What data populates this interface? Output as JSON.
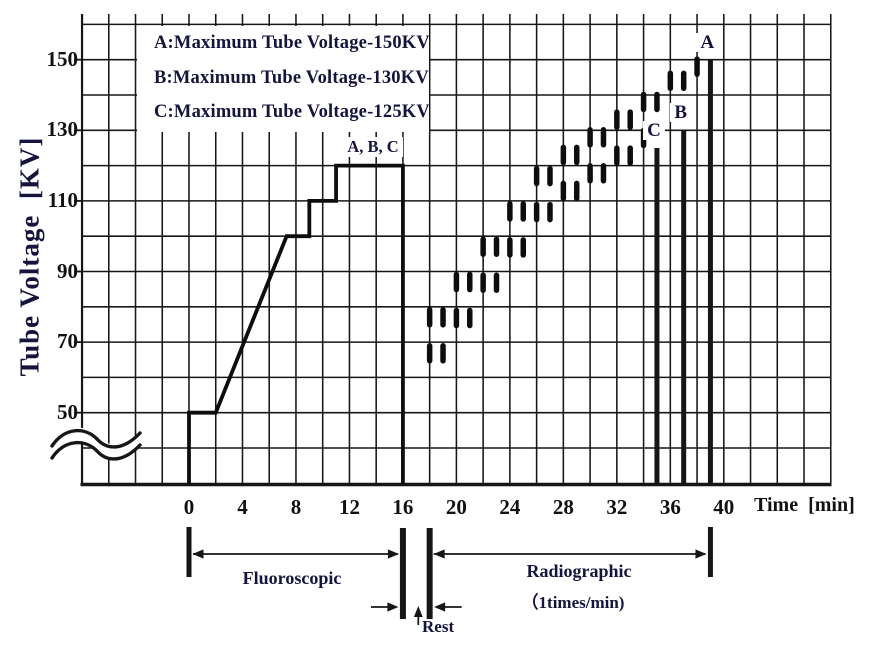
{
  "figure": {
    "y_axis": {
      "label": "Tube Voltage  [KV]",
      "ticks": [
        150,
        130,
        110,
        90,
        70,
        50
      ]
    },
    "x_axis": {
      "label": "Time  [min]",
      "ticks": [
        0,
        4,
        8,
        12,
        16,
        20,
        24,
        28,
        32,
        36,
        40
      ]
    },
    "legend": [
      "A:Maximum Tube Voltage-150KV",
      "B:Maximum Tube Voltage-130KV",
      "C:Maximum Tube Voltage-125KV"
    ],
    "plateau_label": "A, B, C",
    "phase_labels": {
      "fluoroscopic": "Fluoroscopic",
      "radiographic": "Radiographic",
      "radiographic_note": "（1times/min)",
      "rest": "Rest"
    }
  },
  "chart_data": {
    "type": "line",
    "xlabel": "Time [min]",
    "ylabel": "Tube Voltage [KV]",
    "x_ticks": [
      0,
      4,
      8,
      12,
      16,
      20,
      24,
      28,
      32,
      36,
      40
    ],
    "y_ticks": [
      150,
      130,
      110,
      90,
      70,
      50
    ],
    "x_gridline_range": [
      -8,
      48
    ],
    "x_gridline_step": 2,
    "y_gridline_range": [
      40,
      160
    ],
    "y_gridline_step": 10,
    "axis_break_below_kv": 50,
    "fluoroscopic_profile": [
      [
        0,
        0
      ],
      [
        0,
        50
      ],
      [
        2,
        50
      ],
      [
        7.3,
        100
      ],
      [
        9,
        100
      ],
      [
        9,
        110
      ],
      [
        11,
        110
      ],
      [
        11,
        120
      ],
      [
        16,
        120
      ],
      [
        16,
        0
      ]
    ],
    "plateau_label_at": [
      13.7,
      120
    ],
    "radiographic_exposures": [
      {
        "t": 18,
        "kv_top": 80,
        "dashes": 2
      },
      {
        "t": 19,
        "kv_top": 80,
        "dashes": 2
      },
      {
        "t": 20,
        "kv_top": 90,
        "dashes": 2
      },
      {
        "t": 21,
        "kv_top": 90,
        "dashes": 2
      },
      {
        "t": 22,
        "kv_top": 100,
        "dashes": 2
      },
      {
        "t": 23,
        "kv_top": 100,
        "dashes": 2
      },
      {
        "t": 24,
        "kv_top": 110,
        "dashes": 2
      },
      {
        "t": 25,
        "kv_top": 110,
        "dashes": 2
      },
      {
        "t": 26,
        "kv_top": 120,
        "dashes": 2
      },
      {
        "t": 27,
        "kv_top": 120,
        "dashes": 2
      },
      {
        "t": 28,
        "kv_top": 126,
        "dashes": 2
      },
      {
        "t": 29,
        "kv_top": 126,
        "dashes": 2
      },
      {
        "t": 30,
        "kv_top": 131,
        "dashes": 2
      },
      {
        "t": 31,
        "kv_top": 131,
        "dashes": 2
      },
      {
        "t": 32,
        "kv_top": 136,
        "dashes": 2
      },
      {
        "t": 33,
        "kv_top": 136,
        "dashes": 2
      },
      {
        "t": 34,
        "kv_top": 141,
        "dashes": 2
      },
      {
        "t": 35,
        "kv_top": 141,
        "dashes": 1
      },
      {
        "t": 36,
        "kv_top": 147,
        "dashes": 1
      },
      {
        "t": 37,
        "kv_top": 147,
        "dashes": 1
      },
      {
        "t": 38,
        "kv_top": 151,
        "dashes": 1
      }
    ],
    "max_voltage_lines": [
      {
        "label": "C",
        "t": 35,
        "kv": 125
      },
      {
        "label": "B",
        "t": 37,
        "kv": 130
      },
      {
        "label": "A",
        "t": 39,
        "kv": 150
      }
    ],
    "phases": [
      {
        "label": "Fluoroscopic",
        "t_start": 0,
        "t_end": 16
      },
      {
        "label": "Rest",
        "t_start": 16,
        "t_end": 18
      },
      {
        "label": "Radiographic",
        "rate": "1 times/min",
        "t_start": 18,
        "t_end": 39
      }
    ]
  },
  "colors": {
    "line": "#161616",
    "text": "#14143c",
    "background": "#ffffff"
  }
}
